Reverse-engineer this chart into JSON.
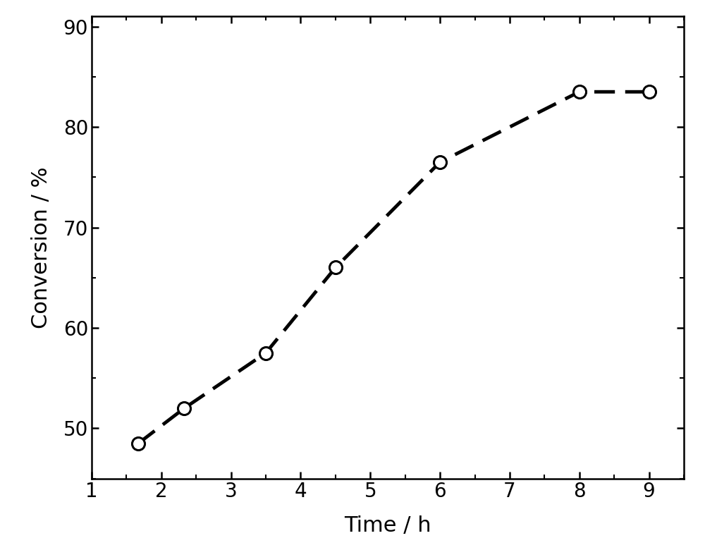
{
  "x": [
    1.67,
    2.33,
    3.5,
    4.5,
    6.0,
    8.0,
    9.0
  ],
  "y": [
    48.5,
    52.0,
    57.5,
    66.0,
    76.5,
    83.5,
    83.5
  ],
  "xlabel": "Time / h",
  "ylabel": "Conversion / %",
  "xlim": [
    1.0,
    9.5
  ],
  "ylim": [
    45,
    91
  ],
  "xticks": [
    1,
    2,
    3,
    4,
    5,
    6,
    7,
    8,
    9
  ],
  "yticks": [
    50,
    60,
    70,
    80,
    90
  ],
  "line_color": "#000000",
  "marker_facecolor": "#ffffff",
  "marker_edgecolor": "#000000",
  "line_width": 3.5,
  "marker_size": 13,
  "marker_edge_width": 2.2,
  "xlabel_fontsize": 22,
  "ylabel_fontsize": 22,
  "tick_fontsize": 20,
  "background_color": "#ffffff"
}
